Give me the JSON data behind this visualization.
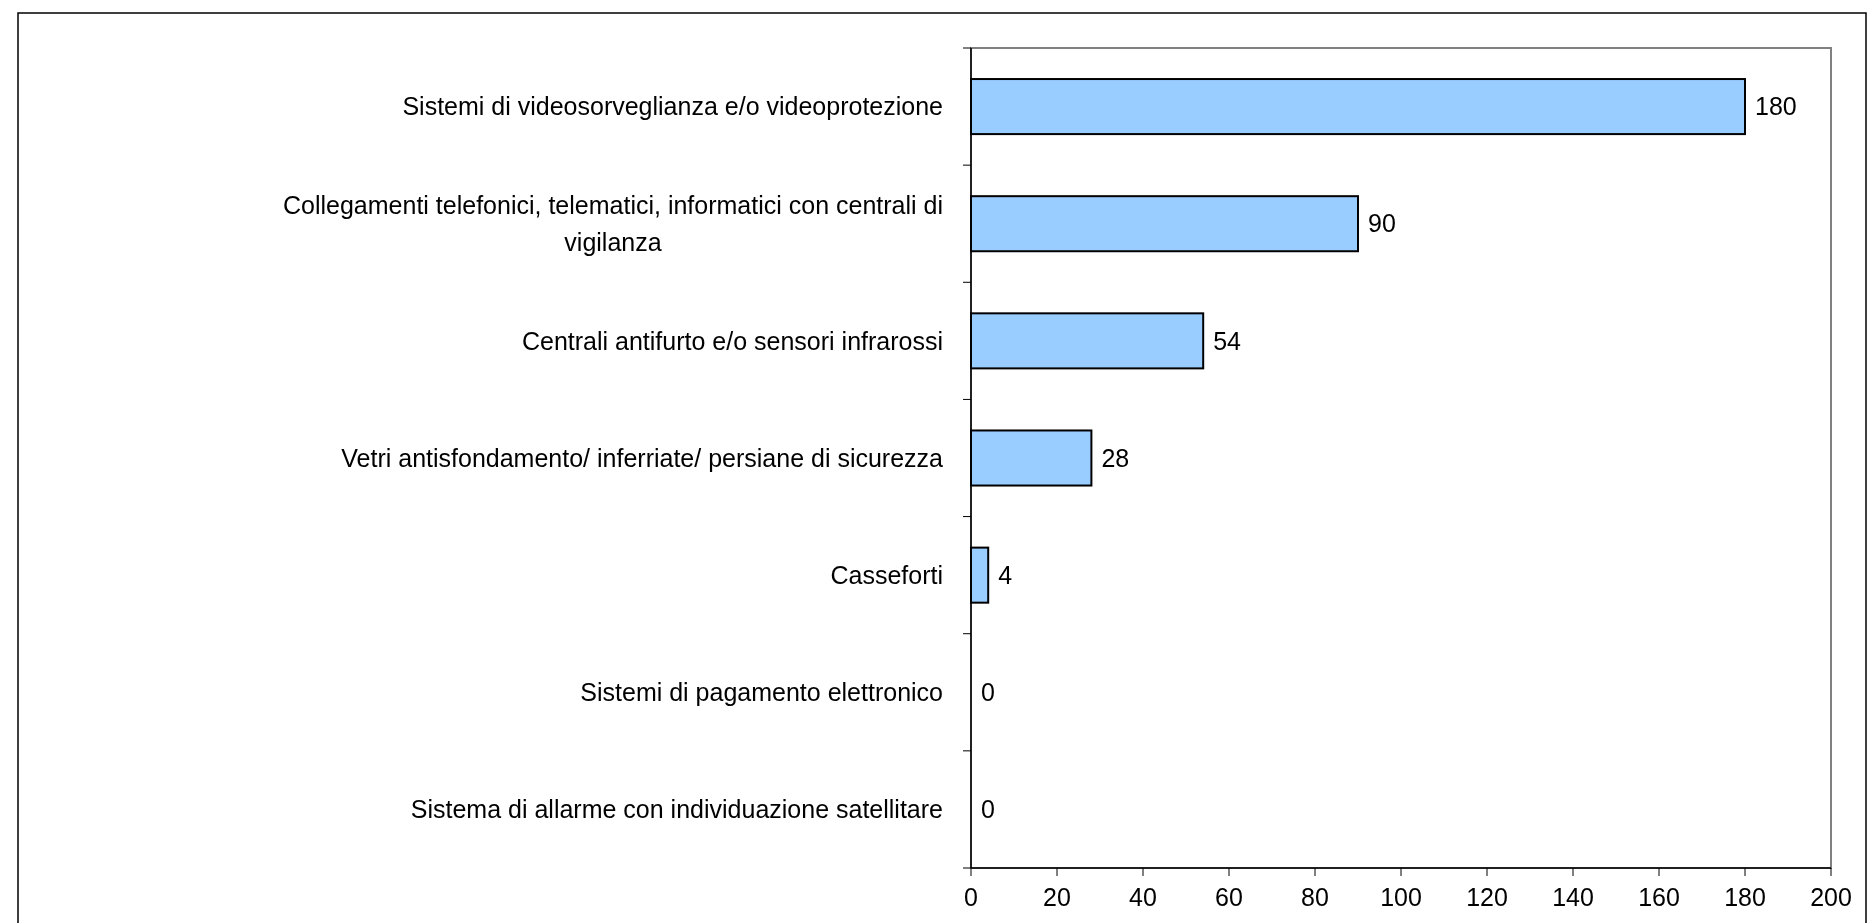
{
  "chart_data": {
    "type": "bar",
    "orientation": "horizontal",
    "categories": [
      "Sistemi di videosorveglianza e/o videoprotezione",
      "Collegamenti telefonici, telematici, informatici con centrali di vigilanza",
      "Centrali antifurto e/o sensori infrarossi",
      "Vetri antisfondamento/ inferriate/ persiane di sicurezza",
      "Casseforti",
      "Sistemi di pagamento elettronico",
      "Sistema di allarme con individuazione satellitare"
    ],
    "values": [
      180,
      90,
      54,
      28,
      4,
      0,
      0
    ],
    "color": "#99ccff",
    "xlim": [
      0,
      200
    ],
    "xticks": [
      0,
      20,
      40,
      60,
      80,
      100,
      120,
      140,
      160,
      180,
      200
    ],
    "data_labels": true
  }
}
